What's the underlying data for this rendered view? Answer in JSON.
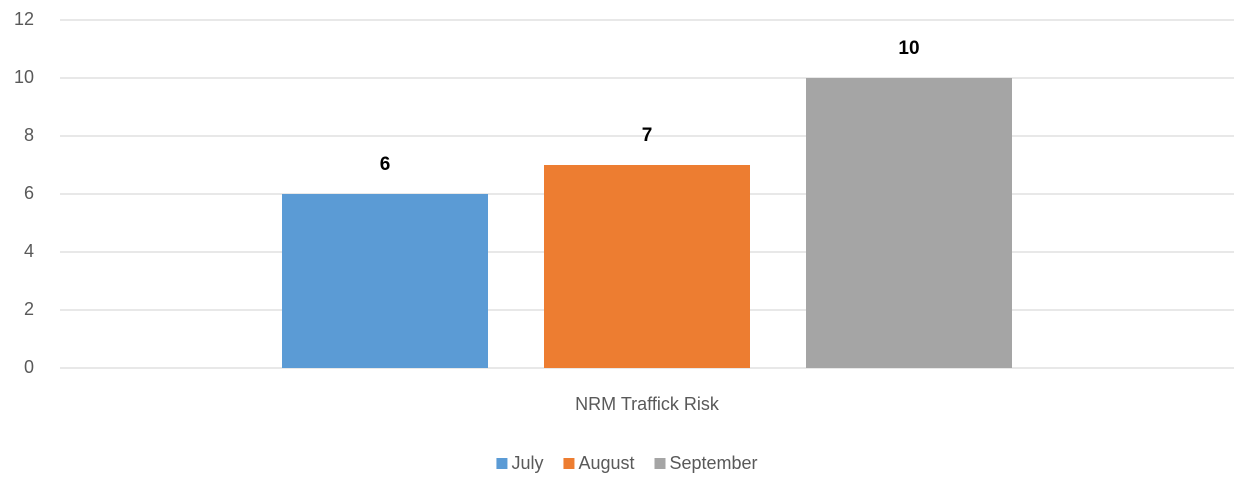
{
  "chart_data": {
    "type": "bar",
    "categories": [
      "NRM Traffick Risk"
    ],
    "series": [
      {
        "name": "July",
        "color": "#5b9bd5",
        "values": [
          6
        ]
      },
      {
        "name": "August",
        "color": "#ed7d31",
        "values": [
          7
        ]
      },
      {
        "name": "September",
        "color": "#a5a5a5",
        "values": [
          10
        ]
      }
    ],
    "ylim": [
      0,
      12
    ],
    "yticks": [
      0,
      2,
      4,
      6,
      8,
      10,
      12
    ],
    "grid": true,
    "legend": "bottom"
  }
}
